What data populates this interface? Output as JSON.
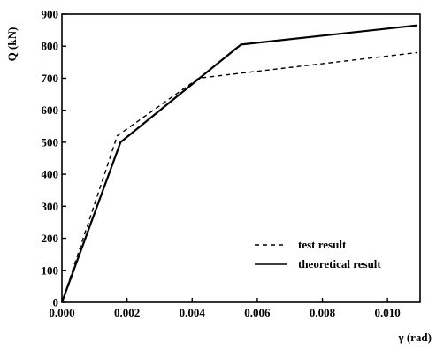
{
  "chart_data": {
    "type": "line",
    "title": "",
    "xlabel": "γ (rad)",
    "ylabel": "Q (kN)",
    "xlim": [
      0.0,
      0.011
    ],
    "ylim": [
      0,
      900
    ],
    "x_ticks": [
      0.0,
      0.002,
      0.004,
      0.006,
      0.008,
      0.01
    ],
    "x_tick_labels": [
      "0.000",
      "0.002",
      "0.004",
      "0.006",
      "0.008",
      "0.010"
    ],
    "y_ticks": [
      0,
      100,
      200,
      300,
      400,
      500,
      600,
      700,
      800,
      900
    ],
    "y_tick_labels": [
      "0",
      "100",
      "200",
      "300",
      "400",
      "500",
      "600",
      "700",
      "800",
      "900"
    ],
    "grid": false,
    "legend_position": "bottom-right",
    "series": [
      {
        "name": "test result",
        "style": "dashed",
        "x": [
          0.0,
          0.0017,
          0.0042,
          0.0109
        ],
        "y": [
          0,
          520,
          700,
          780
        ]
      },
      {
        "name": "theoretical result",
        "style": "solid",
        "x": [
          0.0,
          0.0018,
          0.0055,
          0.0109
        ],
        "y": [
          0,
          500,
          805,
          865
        ]
      }
    ]
  },
  "colors": {
    "axis": "#000000",
    "series": "#000000",
    "background": "#ffffff"
  }
}
